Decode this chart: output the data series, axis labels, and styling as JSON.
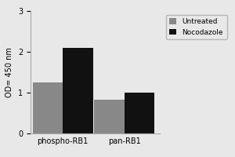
{
  "categories": [
    "phospho-RB1",
    "pan-RB1"
  ],
  "untreated_values": [
    1.25,
    0.82
  ],
  "nocodazole_values": [
    2.1,
    1.0
  ],
  "untreated_color": "#888888",
  "nocodazole_color": "#111111",
  "ylabel": "OD= 450 nm",
  "ylim": [
    0,
    3
  ],
  "yticks": [
    0,
    1,
    2,
    3
  ],
  "legend_labels": [
    "Untreated",
    "Nocodazole"
  ],
  "bar_width": 0.28,
  "background_color": "#e8e8e8",
  "figure_background": "#e8e8e8"
}
